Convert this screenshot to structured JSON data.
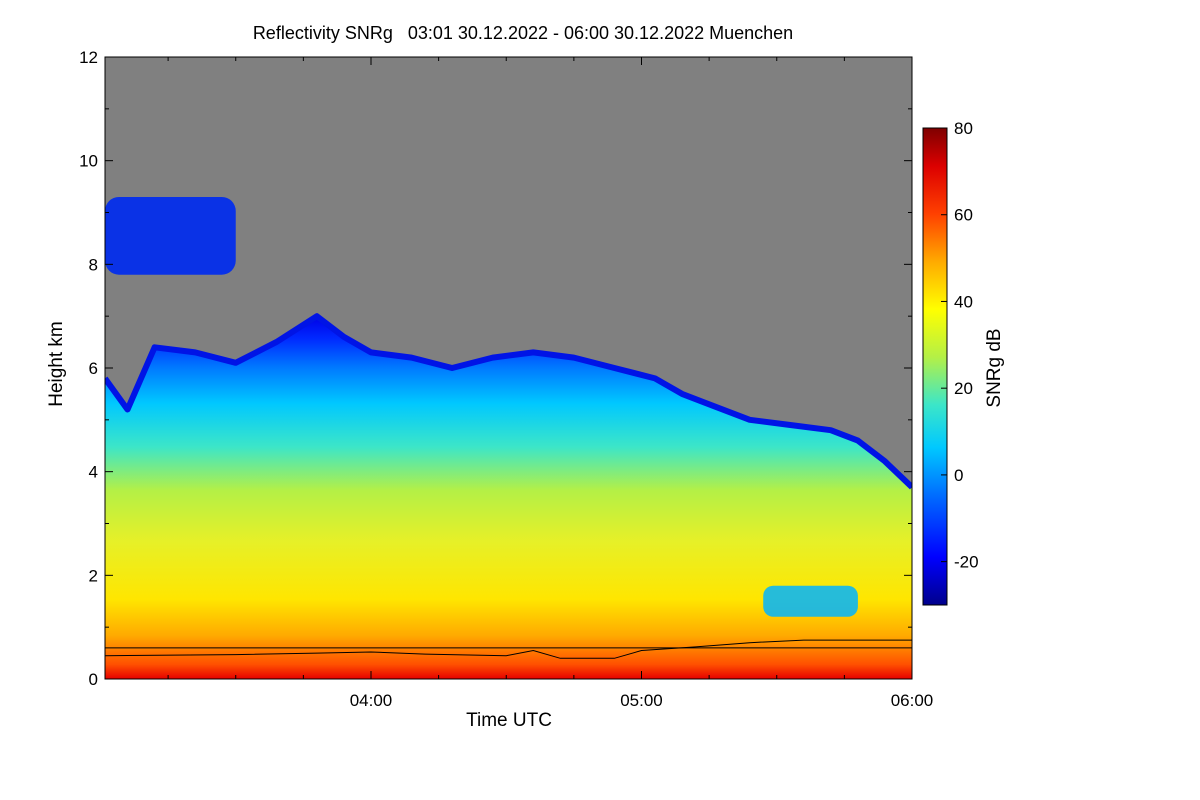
{
  "chart_data": {
    "type": "heatmap",
    "title": "Reflectivity SNRg   03:01 30.12.2022 - 06:00 30.12.2022 Muenchen",
    "xlabel": "Time UTC",
    "ylabel": "Height km",
    "colorbar_label": "SNRg dB",
    "xlim": [
      3.0167,
      6.0
    ],
    "ylim": [
      0,
      12
    ],
    "x_ticks": [
      {
        "value": 4.0,
        "label": "04:00"
      },
      {
        "value": 5.0,
        "label": "05:00"
      },
      {
        "value": 6.0,
        "label": "06:00"
      }
    ],
    "y_ticks": [
      {
        "value": 0,
        "label": "0"
      },
      {
        "value": 2,
        "label": "2"
      },
      {
        "value": 4,
        "label": "4"
      },
      {
        "value": 6,
        "label": "6"
      },
      {
        "value": 8,
        "label": "8"
      },
      {
        "value": 10,
        "label": "10"
      },
      {
        "value": 12,
        "label": "12"
      }
    ],
    "clim": [
      -30,
      80
    ],
    "colorbar_ticks": [
      {
        "value": -20,
        "label": "-20"
      },
      {
        "value": 0,
        "label": "0"
      },
      {
        "value": 20,
        "label": "20"
      },
      {
        "value": 40,
        "label": "40"
      },
      {
        "value": 60,
        "label": "60"
      },
      {
        "value": 80,
        "label": "80"
      }
    ],
    "colors": {
      "no_signal": "#808080",
      "colormap": [
        "#00008b",
        "#0000ff",
        "#0064ff",
        "#00c8ff",
        "#3ce6c8",
        "#b4f046",
        "#ffff00",
        "#ffaa00",
        "#ff4000",
        "#dc0000",
        "#7f0000"
      ]
    },
    "cloud_top_km": [
      [
        3.0167,
        5.8
      ],
      [
        3.1,
        5.2
      ],
      [
        3.2,
        6.4
      ],
      [
        3.35,
        6.3
      ],
      [
        3.5,
        6.1
      ],
      [
        3.65,
        6.5
      ],
      [
        3.8,
        7.0
      ],
      [
        3.9,
        6.6
      ],
      [
        4.0,
        6.3
      ],
      [
        4.15,
        6.2
      ],
      [
        4.3,
        6.0
      ],
      [
        4.45,
        6.2
      ],
      [
        4.6,
        6.3
      ],
      [
        4.75,
        6.2
      ],
      [
        4.9,
        6.0
      ],
      [
        5.05,
        5.8
      ],
      [
        5.15,
        5.5
      ],
      [
        5.25,
        5.3
      ],
      [
        5.4,
        5.0
      ],
      [
        5.55,
        4.9
      ],
      [
        5.7,
        4.8
      ],
      [
        5.8,
        4.6
      ],
      [
        5.9,
        4.2
      ],
      [
        6.0,
        3.7
      ]
    ],
    "upper_cloud": {
      "x_range": [
        3.0167,
        3.5
      ],
      "height_km": [
        7.8,
        9.3
      ]
    },
    "typical_snr_db": [
      {
        "height_km": 0.3,
        "snr_db": 60
      },
      {
        "height_km": 1.0,
        "snr_db": 48
      },
      {
        "height_km": 2.0,
        "snr_db": 38
      },
      {
        "height_km": 3.5,
        "snr_db": 25
      },
      {
        "height_km": 5.0,
        "snr_db": 10
      },
      {
        "height_km": 6.0,
        "snr_db": -15
      }
    ],
    "clear_pocket": {
      "x_range": [
        5.45,
        5.8
      ],
      "height_km": [
        1.2,
        1.8
      ],
      "snr_db": 12
    },
    "lines": [
      {
        "points": [
          [
            3.0167,
            0.45
          ],
          [
            3.5,
            0.47
          ],
          [
            3.8,
            0.5
          ],
          [
            4.0,
            0.52
          ],
          [
            4.2,
            0.48
          ],
          [
            4.5,
            0.45
          ],
          [
            4.6,
            0.55
          ],
          [
            4.7,
            0.4
          ],
          [
            4.9,
            0.4
          ],
          [
            5.0,
            0.55
          ],
          [
            5.2,
            0.62
          ],
          [
            5.4,
            0.7
          ],
          [
            5.6,
            0.75
          ],
          [
            6.0,
            0.75
          ]
        ]
      },
      {
        "points": [
          [
            3.0167,
            0.6
          ],
          [
            4.0,
            0.6
          ],
          [
            5.0,
            0.6
          ],
          [
            6.0,
            0.6
          ]
        ]
      }
    ]
  }
}
